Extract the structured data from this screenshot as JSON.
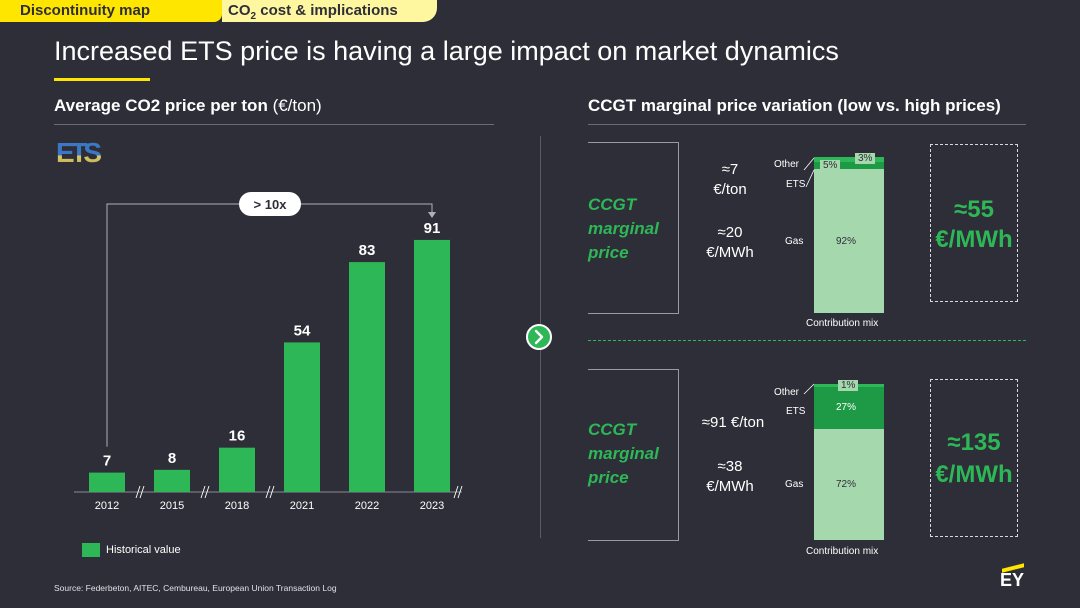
{
  "tabs": {
    "discontinuity": "Discontinuity map",
    "co2_pre": "CO",
    "co2_sub": "2",
    "co2_post": " cost & implications"
  },
  "title": "Increased ETS price is having a large impact on market dynamics",
  "left_section": {
    "heading": "Average CO2 price per ton",
    "unit": "(€/ton)"
  },
  "right_section": {
    "heading": "CCGT marginal price variation (low vs. high prices)"
  },
  "ets_logo_text": "ETS",
  "increase_label": "> 10x",
  "chart_data": {
    "type": "bar",
    "categories": [
      "2012",
      "2015",
      "2018",
      "2021",
      "2022",
      "2023"
    ],
    "values": [
      7,
      8,
      16,
      54,
      83,
      91
    ],
    "series": [
      {
        "name": "Historical value",
        "values": [
          7,
          8,
          16,
          54,
          83,
          91
        ]
      }
    ],
    "ylim": [
      0,
      100
    ],
    "color": "#2db757",
    "grid": false
  },
  "legend": {
    "label": "Historical value"
  },
  "low_panel": {
    "label": [
      "CCGT",
      "marginal",
      "price"
    ],
    "ets_price": [
      "≈7",
      "€/ton"
    ],
    "gas_price": [
      "≈20",
      "€/MWh"
    ],
    "mix": {
      "other": 3,
      "ets": 5,
      "gas": 92
    },
    "mix_labels": {
      "other": "Other",
      "ets": "ETS",
      "gas": "Gas",
      "other_pct": "3%",
      "ets_pct": "5%",
      "gas_pct": "92%"
    },
    "mix_caption": "Contribution mix",
    "result": [
      "≈55",
      "€/MWh"
    ]
  },
  "high_panel": {
    "label": [
      "CCGT",
      "marginal",
      "price"
    ],
    "ets_price": "≈91 €/ton",
    "gas_price": [
      "≈38",
      "€/MWh"
    ],
    "mix": {
      "other": 1,
      "ets": 27,
      "gas": 72
    },
    "mix_labels": {
      "other": "Other",
      "ets": "ETS",
      "gas": "Gas",
      "other_pct": "1%",
      "ets_pct": "27%",
      "gas_pct": "72%"
    },
    "mix_caption": "Contribution mix",
    "result": [
      "≈135",
      "€/MWh"
    ]
  },
  "source": "Source:  Federbeton, AITEC, Cembureau, European Union Transaction Log",
  "brand": "EY",
  "colors": {
    "background": "#2e2e38",
    "accent_yellow": "#ffe600",
    "green": "#2db757",
    "light_green": "#a6d8ae"
  }
}
